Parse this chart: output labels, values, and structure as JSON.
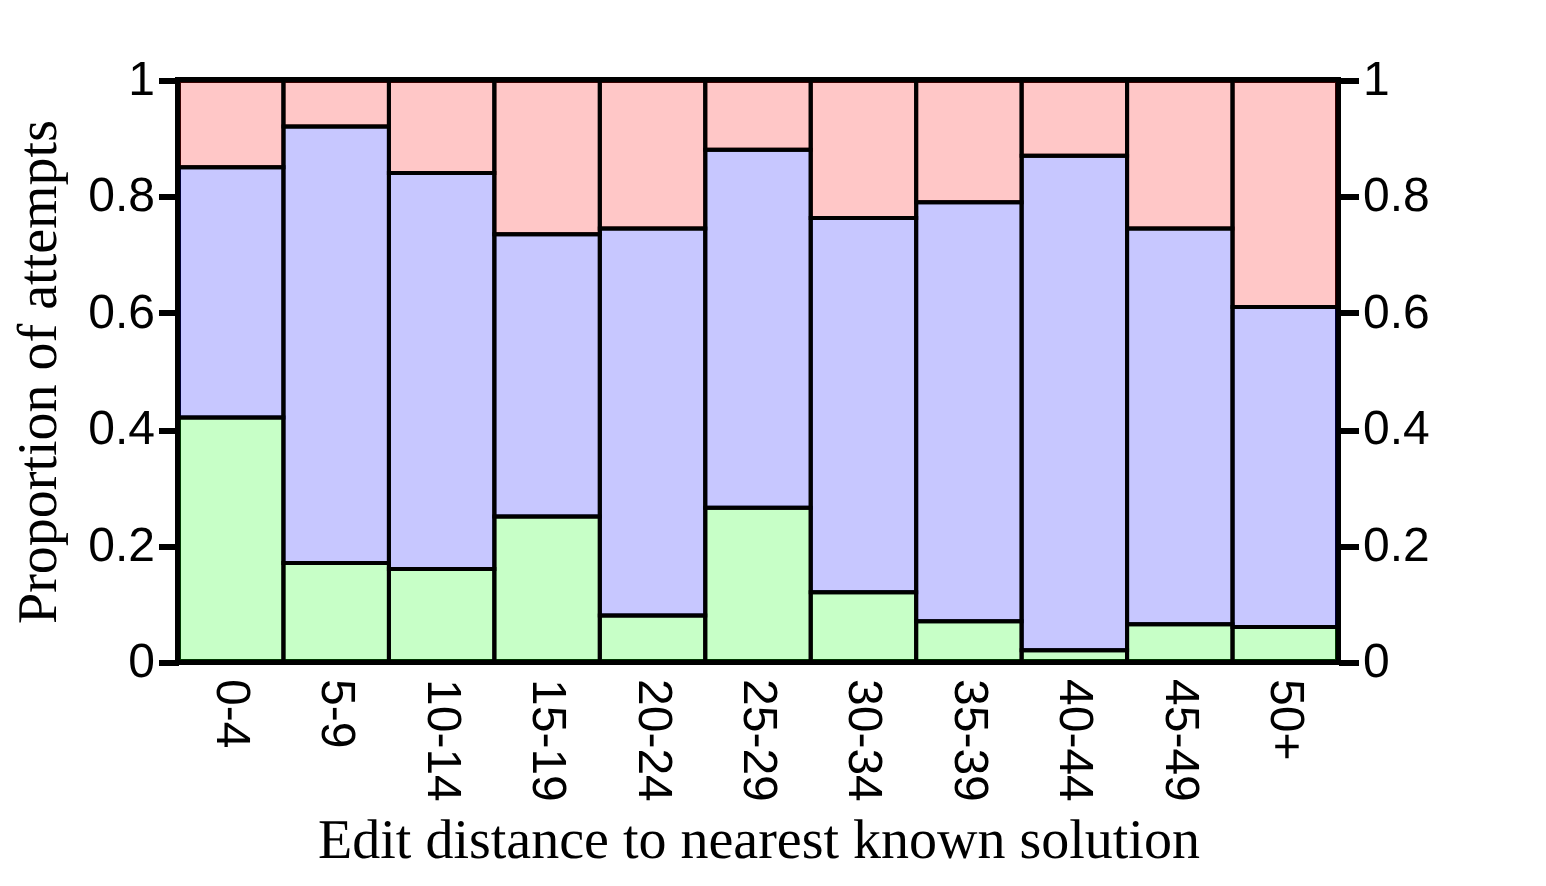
{
  "chart_data": {
    "type": "bar",
    "stacked": true,
    "xlabel": "Edit distance to nearest known solution",
    "ylabel": "Proportion of attempts",
    "categories": [
      "0-4",
      "5-9",
      "10-14",
      "15-19",
      "20-24",
      "25-29",
      "30-34",
      "35-39",
      "40-44",
      "45-49",
      "50+"
    ],
    "series": [
      {
        "color": "#00ff00",
        "values": [
          0.42,
          0.17,
          0.16,
          0.25,
          0.08,
          0.265,
          0.12,
          0.07,
          0.02,
          0.065,
          0.06
        ]
      },
      {
        "color": "#0000ff",
        "values": [
          0.43,
          0.75,
          0.68,
          0.485,
          0.665,
          0.615,
          0.643,
          0.72,
          0.85,
          0.68,
          0.55
        ]
      },
      {
        "color": "#ff0000",
        "values": [
          0.15,
          0.08,
          0.16,
          0.265,
          0.255,
          0.12,
          0.237,
          0.21,
          0.13,
          0.255,
          0.39
        ]
      }
    ],
    "ylim": [
      0,
      1
    ],
    "yticks": [
      0,
      0.2,
      0.4,
      0.6,
      0.8,
      1
    ],
    "y2lim": [
      0,
      1
    ],
    "y2ticks": [
      0,
      0.2,
      0.4,
      0.6,
      0.8,
      1
    ],
    "grid": false
  }
}
